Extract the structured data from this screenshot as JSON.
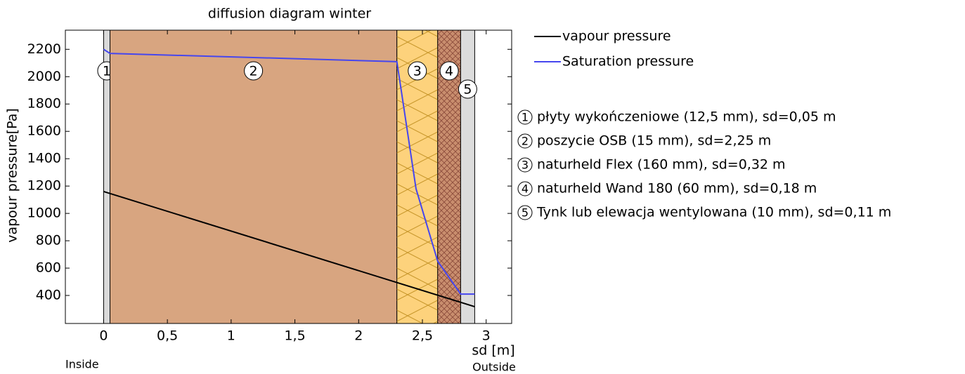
{
  "chart_data": {
    "type": "line",
    "title": "diffusion diagram winter",
    "ylabel": "vapour pressure[Pa]",
    "xlabel": "sd [m]",
    "annotations": [
      "Inside",
      "Outside"
    ],
    "xlim": [
      -0.3,
      3.2
    ],
    "ylim": [
      195,
      2340
    ],
    "xticks": [
      0,
      {
        "value": 0.5,
        "label": "0,5"
      },
      1,
      {
        "value": 1.5,
        "label": "1,5"
      },
      2,
      {
        "value": 2.5,
        "label": "2,5"
      },
      3
    ],
    "yticks": [
      400,
      600,
      800,
      1000,
      1200,
      1400,
      1600,
      1800,
      2000,
      2200
    ],
    "series": [
      {
        "name": "vapour pressure",
        "color": "#000000",
        "x": [
          0,
          2.91
        ],
        "values": [
          1160,
          318
        ]
      },
      {
        "name": "Saturation pressure",
        "color": "#4646ee",
        "x": [
          0,
          0.05,
          2.3,
          2.45,
          2.62,
          2.8,
          2.91
        ],
        "values": [
          2200,
          2170,
          2110,
          1180,
          650,
          410,
          410
        ]
      }
    ],
    "layers": [
      {
        "label": "1",
        "name": "płyty wykończeniowe (12,5 mm), sd=0,05 m",
        "start": 0,
        "end": 0.05,
        "color": "#d9d9d9"
      },
      {
        "label": "2",
        "name": "poszycie OSB (15 mm), sd=2,25 m",
        "start": 0.05,
        "end": 2.3,
        "color": "#d8a580"
      },
      {
        "label": "3",
        "name": "naturheld Flex (160 mm), sd=0,32 m",
        "start": 2.3,
        "end": 2.62,
        "color": "#fdd27c"
      },
      {
        "label": "4",
        "name": "naturheld Wand 180 (60 mm), sd=0,18 m",
        "start": 2.62,
        "end": 2.8,
        "color": "#c98e6e"
      },
      {
        "label": "5",
        "name": "Tynk lub elewacja wentylowana (10 mm), sd=0,11 m",
        "start": 2.8,
        "end": 2.91,
        "color": "#dcdcdc"
      }
    ]
  }
}
